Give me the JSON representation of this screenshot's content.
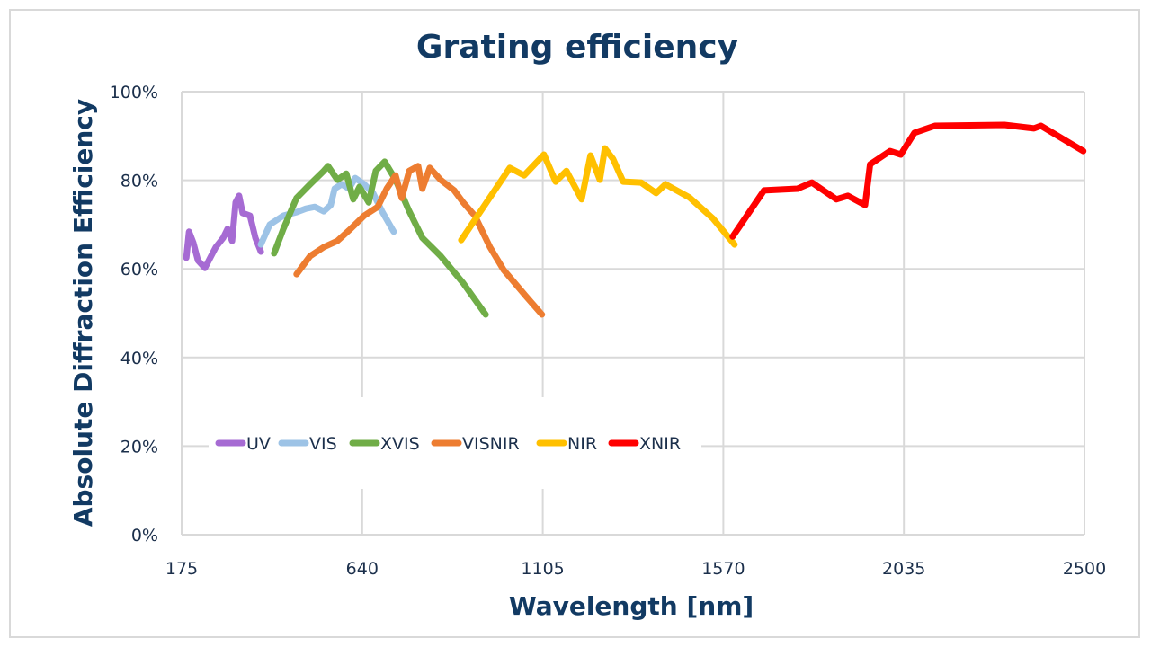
{
  "chart_data": {
    "type": "line",
    "title": "Grating efficiency",
    "xlabel": "Wavelength [nm]",
    "ylabel": "Absolute Diffraction Efficiency",
    "xlim": [
      175,
      2500
    ],
    "ylim": [
      0,
      100
    ],
    "x_ticks": [
      "175",
      "640",
      "1105",
      "1570",
      "2035",
      "2500"
    ],
    "y_ticks": [
      "0%",
      "20%",
      "40%",
      "60%",
      "80%",
      "100%"
    ],
    "grid": true,
    "legend_placement": "inside-lower-left",
    "series": [
      {
        "name": "UV",
        "color": "#a66bd3",
        "points": [
          [
            187,
            62.5
          ],
          [
            194,
            68.4
          ],
          [
            205,
            65.9
          ],
          [
            217,
            61.9
          ],
          [
            235,
            60.2
          ],
          [
            251,
            62.9
          ],
          [
            263,
            64.9
          ],
          [
            282,
            67
          ],
          [
            293,
            69
          ],
          [
            305,
            66.3
          ],
          [
            314,
            75
          ],
          [
            323,
            76.5
          ],
          [
            332,
            72.6
          ],
          [
            351,
            72
          ],
          [
            365,
            67
          ],
          [
            379,
            63.9
          ]
        ]
      },
      {
        "name": "VIS",
        "color": "#9dc3e6",
        "points": [
          [
            379,
            65.5
          ],
          [
            402,
            70
          ],
          [
            437,
            72
          ],
          [
            471,
            72.8
          ],
          [
            495,
            73.6
          ],
          [
            518,
            74
          ],
          [
            541,
            73
          ],
          [
            559,
            74.4
          ],
          [
            569,
            78.1
          ],
          [
            587,
            79.1
          ],
          [
            606,
            78.1
          ],
          [
            622,
            80.5
          ],
          [
            645,
            79.1
          ],
          [
            668,
            77.1
          ],
          [
            691,
            73
          ],
          [
            721,
            68.4
          ]
        ]
      },
      {
        "name": "XVIS",
        "color": "#70ad47",
        "points": [
          [
            413,
            63.5
          ],
          [
            437,
            69
          ],
          [
            471,
            76
          ],
          [
            506,
            79.1
          ],
          [
            541,
            82.1
          ],
          [
            552,
            83.2
          ],
          [
            576,
            80.1
          ],
          [
            599,
            81.5
          ],
          [
            617,
            75.7
          ],
          [
            633,
            78.5
          ],
          [
            657,
            75
          ],
          [
            675,
            82.1
          ],
          [
            698,
            84.2
          ],
          [
            726,
            80.1
          ],
          [
            761,
            73
          ],
          [
            795,
            67
          ],
          [
            842,
            62.9
          ],
          [
            900,
            56.8
          ],
          [
            958,
            49.7
          ]
        ]
      },
      {
        "name": "VISNIR",
        "color": "#ed7d31",
        "points": [
          [
            471,
            58.8
          ],
          [
            506,
            62.9
          ],
          [
            541,
            64.9
          ],
          [
            576,
            66.3
          ],
          [
            610,
            69
          ],
          [
            645,
            72
          ],
          [
            680,
            74
          ],
          [
            703,
            78.1
          ],
          [
            726,
            81.1
          ],
          [
            742,
            76
          ],
          [
            761,
            82.1
          ],
          [
            784,
            83.2
          ],
          [
            795,
            78.1
          ],
          [
            814,
            82.8
          ],
          [
            842,
            80.1
          ],
          [
            877,
            77.7
          ],
          [
            900,
            75
          ],
          [
            930,
            72
          ],
          [
            969,
            64.9
          ],
          [
            1004,
            59.8
          ],
          [
            1062,
            53.8
          ],
          [
            1103,
            49.7
          ]
        ]
      },
      {
        "name": "NIR",
        "color": "#ffc000",
        "points": [
          [
            895,
            66.5
          ],
          [
            1020,
            82.8
          ],
          [
            1057,
            81.1
          ],
          [
            1108,
            85.8
          ],
          [
            1138,
            79.7
          ],
          [
            1166,
            82.1
          ],
          [
            1205,
            75.7
          ],
          [
            1228,
            85.6
          ],
          [
            1252,
            80.1
          ],
          [
            1265,
            87.2
          ],
          [
            1286,
            84.8
          ],
          [
            1312,
            79.7
          ],
          [
            1358,
            79.5
          ],
          [
            1397,
            77.1
          ],
          [
            1421,
            79.1
          ],
          [
            1483,
            76.1
          ],
          [
            1543,
            71.4
          ],
          [
            1599,
            65.5
          ]
        ]
      },
      {
        "name": "XNIR",
        "color": "#ff0000",
        "points": [
          [
            1594,
            67.3
          ],
          [
            1675,
            77.7
          ],
          [
            1761,
            78.1
          ],
          [
            1798,
            79.5
          ],
          [
            1861,
            75.7
          ],
          [
            1891,
            76.5
          ],
          [
            1935,
            74.4
          ],
          [
            1948,
            83.6
          ],
          [
            1999,
            86.6
          ],
          [
            2027,
            85.8
          ],
          [
            2062,
            90.7
          ],
          [
            2115,
            92.3
          ],
          [
            2294,
            92.5
          ],
          [
            2370,
            91.7
          ],
          [
            2388,
            92.3
          ],
          [
            2497,
            86.6
          ]
        ]
      }
    ]
  }
}
